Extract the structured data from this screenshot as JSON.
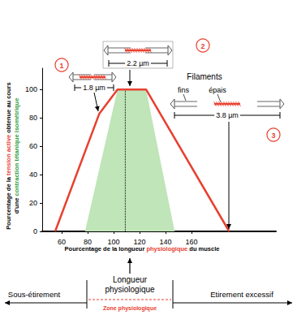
{
  "chart_data": {
    "type": "line",
    "xlabel": [
      {
        "text": "Pourcentage de la longueur "
      },
      {
        "text": "physiologique",
        "color": "#e8402f"
      },
      {
        "text": " du muscle"
      }
    ],
    "ylabel": [
      [
        {
          "text": "Pourcentage de la "
        },
        {
          "text": "tension active",
          "color": "#e8402f"
        },
        {
          "text": " obtenue au cours"
        }
      ],
      [
        {
          "text": "d'une "
        },
        {
          "text": "contraction tétanique isométrique",
          "color": "#2e9e3a"
        }
      ]
    ],
    "xlim": [
      45,
      225
    ],
    "xticks": [
      60,
      80,
      100,
      120,
      140,
      160
    ],
    "ylim": [
      0,
      115
    ],
    "yticks": [
      0,
      20,
      40,
      60,
      80,
      100
    ],
    "grid": false,
    "series": [
      {
        "type": "area",
        "color": "#bfe5b8",
        "x": [
          78,
          103,
          125,
          147
        ],
        "values": [
          0,
          100,
          100,
          0
        ]
      },
      {
        "type": "line",
        "color": "#e8402f",
        "x": [
          55,
          89,
          103,
          125,
          189
        ],
        "values": [
          0,
          83,
          100,
          100,
          0
        ]
      },
      {
        "type": "line",
        "color": "#000000",
        "line_style": "dotted",
        "x": [
          109,
          109
        ],
        "values": [
          0,
          100
        ]
      }
    ],
    "annotations": {
      "markers": [
        "1",
        "2",
        "3"
      ],
      "lengths": [
        "1.8 µm",
        "2.2 µm",
        "3.8 µm"
      ],
      "filaments": {
        "title": "Filaments",
        "thin": "fins",
        "thick": "épais"
      },
      "center": [
        "Longueur",
        "physiologique"
      ],
      "left": "Sous-étirement",
      "right": "Etirement excessif",
      "zone": "Zone physiologique"
    }
  }
}
